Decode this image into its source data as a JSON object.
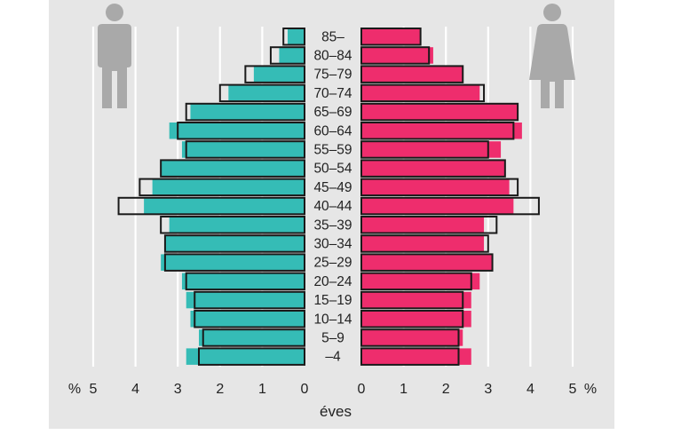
{
  "chart_data": {
    "type": "bar",
    "subtype": "population-pyramid",
    "xlabel": "éves",
    "unit": "%",
    "xlim": [
      0,
      5
    ],
    "x_ticks": [
      "5",
      "4",
      "3",
      "2",
      "1",
      "0",
      "0",
      "1",
      "2",
      "3",
      "4",
      "5"
    ],
    "age_groups": [
      "85–",
      "80–84",
      "75–79",
      "70–74",
      "65–69",
      "60–64",
      "55–59",
      "50–54",
      "45–49",
      "40–44",
      "35–39",
      "30–34",
      "25–29",
      "20–24",
      "15–19",
      "10–14",
      "5–9",
      "–4"
    ],
    "series": [
      {
        "side": "male",
        "kind": "filled",
        "color": "#35bcb6",
        "values": [
          0.4,
          0.6,
          1.2,
          1.8,
          2.7,
          3.2,
          2.9,
          3.4,
          3.6,
          3.8,
          3.2,
          3.3,
          3.4,
          2.9,
          2.8,
          2.7,
          2.5,
          2.8
        ]
      },
      {
        "side": "male",
        "kind": "outline",
        "color": "#1a1a1a",
        "values": [
          0.5,
          0.8,
          1.4,
          2.0,
          2.8,
          3.0,
          2.8,
          3.4,
          3.9,
          4.4,
          3.4,
          3.3,
          3.3,
          2.8,
          2.6,
          2.6,
          2.4,
          2.5
        ]
      },
      {
        "side": "female",
        "kind": "filled",
        "color": "#ee2d6d",
        "values": [
          1.4,
          1.7,
          2.4,
          2.8,
          3.7,
          3.8,
          3.3,
          3.4,
          3.5,
          3.6,
          2.9,
          2.9,
          3.1,
          2.8,
          2.6,
          2.6,
          2.4,
          2.6
        ]
      },
      {
        "side": "female",
        "kind": "outline",
        "color": "#1a1a1a",
        "values": [
          1.4,
          1.6,
          2.4,
          2.9,
          3.7,
          3.6,
          3.0,
          3.4,
          3.7,
          4.2,
          3.2,
          3.0,
          3.1,
          2.6,
          2.4,
          2.4,
          2.3,
          2.3
        ]
      }
    ],
    "grid": true,
    "background": "#e6e6e6",
    "icons": [
      "male-figure-icon",
      "female-figure-icon"
    ]
  }
}
